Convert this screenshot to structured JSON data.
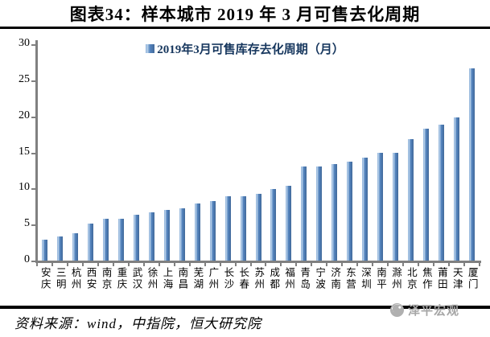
{
  "header": {
    "title": "图表34：样本城市 2019 年 3 月可售去化周期"
  },
  "chart_data": {
    "type": "bar",
    "title": "图表34：样本城市 2019 年 3 月可售去化周期",
    "legend": "2019年3月可售库存去化周期（月）",
    "categories": [
      "安庆",
      "三明",
      "杭州",
      "西安",
      "南京",
      "重庆",
      "武汉",
      "徐州",
      "上海",
      "南昌",
      "芜湖",
      "广州",
      "长沙",
      "长春",
      "苏州",
      "成都",
      "福州",
      "青岛",
      "宁波",
      "济南",
      "东营",
      "深圳",
      "南平",
      "滁州",
      "北京",
      "焦作",
      "莆田",
      "天津",
      "厦门"
    ],
    "values": [
      2.9,
      3.4,
      3.8,
      5.1,
      5.8,
      5.8,
      6.4,
      6.7,
      7.0,
      7.2,
      7.9,
      8.2,
      8.9,
      8.9,
      9.3,
      9.9,
      10.4,
      13.0,
      13.1,
      13.4,
      13.7,
      14.3,
      15.0,
      15.0,
      16.8,
      18.3,
      18.8,
      19.9,
      26.6
    ],
    "xlabel": "",
    "ylabel": "",
    "ylim": [
      0,
      30
    ],
    "yticks": [
      0,
      5,
      10,
      15,
      20,
      25,
      30
    ],
    "grid": false,
    "legend_position": "top-center",
    "bar_color": "#4E81BD"
  },
  "footer": {
    "source": "资料来源：wind，中指院，恒大研究院",
    "watermark": "泽平宏观"
  },
  "colors": {
    "bar": "#4E81BD",
    "bar_highlight": "#BCD4EC",
    "bar_shadow": "#41699A",
    "legend_text": "#17375E",
    "axis": "#808080",
    "rule": "#000000",
    "watermark": "#A6A6A6"
  }
}
